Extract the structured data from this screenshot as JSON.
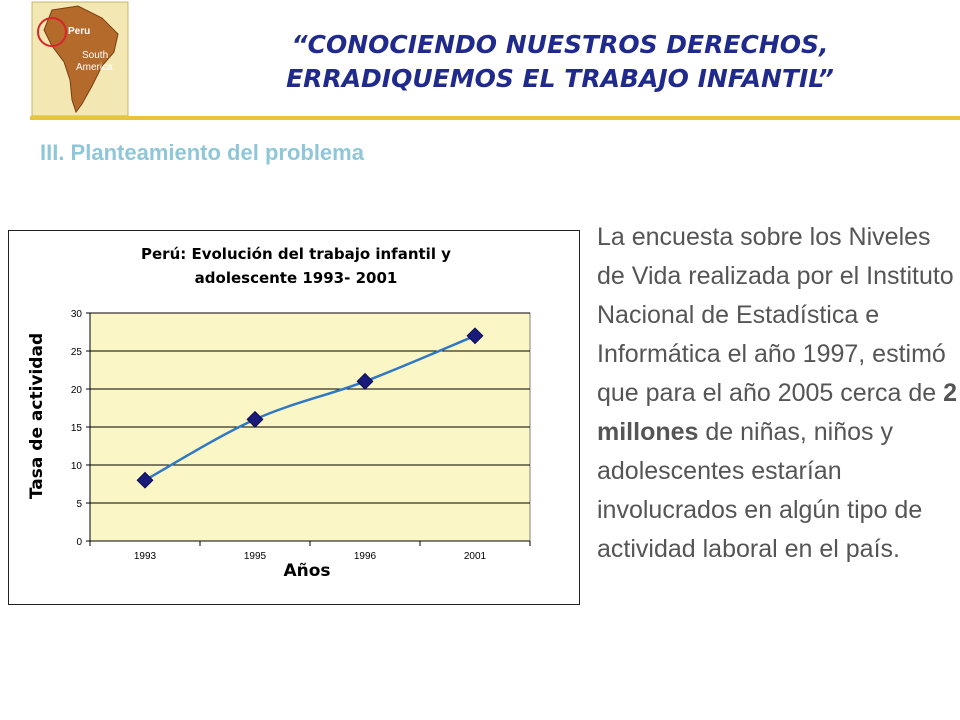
{
  "header": {
    "logo_text": [
      "Peru",
      "South",
      "America"
    ],
    "title_line1": "“CONOCIENDO NUESTROS DERECHOS,",
    "title_line2": "ERRADIQUEMOS EL TRABAJO INFANTIL”"
  },
  "section": {
    "heading": "III. Planteamiento del problema"
  },
  "body": {
    "part1": "La encuesta sobre los Niveles de Vida realizada por el Instituto Nacional de Estadística e Informática el año 1997, estimó que para el año 2005 cerca de ",
    "bold1": "2 millones",
    "part2": " de niñas, niños y adolescentes estarían involucrados en algún tipo de actividad laboral en el país."
  },
  "chart_data": {
    "type": "line",
    "title_line1": "Perú: Evolución del trabajo infantil y",
    "title_line2": "adolescente 1993- 2001",
    "xlabel": "Años",
    "ylabel": "Tasa de actividad",
    "categories": [
      "1993",
      "1995",
      "1996",
      "2001"
    ],
    "series": [
      {
        "values": [
          8,
          16,
          21,
          27
        ]
      }
    ],
    "ylim": [
      0,
      30
    ],
    "yticks": [
      0,
      5,
      10,
      15,
      20,
      25,
      30
    ],
    "grid": true,
    "colors": {
      "line": "#2e78c6",
      "marker": "#1a1a7a",
      "plot_bg": "#fbf6c6"
    }
  }
}
